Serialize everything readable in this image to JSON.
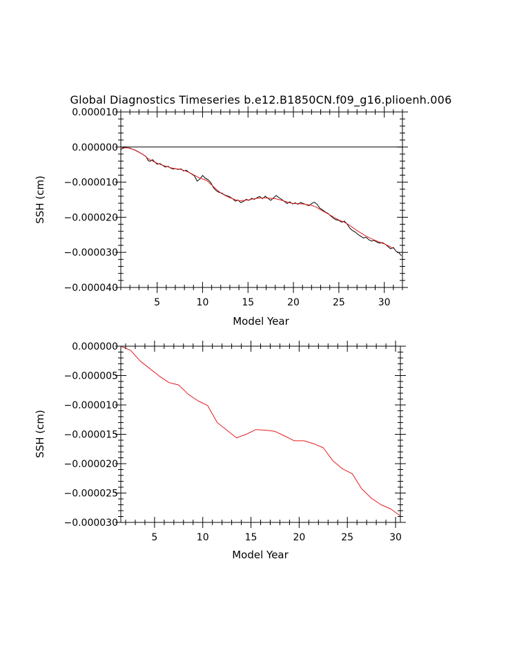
{
  "chart_data": [
    {
      "type": "line",
      "title": "Global Diagnostics Timeseries b.e12.B1850CN.f09_g16.plioenh.006",
      "xlabel": "Model Year",
      "ylabel": "SSH (cm)",
      "xlim": [
        1,
        32
      ],
      "ylim": [
        -4e-05,
        1e-05
      ],
      "x_ticks": [
        5,
        10,
        15,
        20,
        25,
        30
      ],
      "x_tick_labels": [
        "5",
        "10",
        "15",
        "20",
        "25",
        "30"
      ],
      "y_ticks": [
        1e-05,
        0,
        -1e-05,
        -2e-05,
        -3e-05,
        -4e-05
      ],
      "y_tick_labels": [
        "0.000010",
        "0.000000",
        "-0.000010",
        "-0.000020",
        "-0.000030",
        "-0.000040"
      ],
      "reference_line": 0,
      "series": [
        {
          "color": "#000000",
          "x": [
            1.0,
            1.2,
            1.5,
            1.8,
            2.0,
            2.3,
            2.6,
            2.9,
            3.2,
            3.5,
            3.8,
            4.0,
            4.2,
            4.5,
            4.8,
            5.0,
            5.3,
            5.6,
            5.9,
            6.2,
            6.5,
            6.8,
            7.0,
            7.3,
            7.6,
            7.9,
            8.2,
            8.5,
            8.8,
            9.1,
            9.4,
            9.7,
            10.0,
            10.3,
            10.6,
            10.9,
            11.2,
            11.5,
            11.8,
            12.1,
            12.4,
            12.7,
            13.0,
            13.3,
            13.6,
            13.9,
            14.2,
            14.5,
            14.8,
            15.1,
            15.4,
            15.7,
            16.0,
            16.3,
            16.6,
            16.9,
            17.2,
            17.5,
            17.8,
            18.1,
            18.4,
            18.7,
            19.0,
            19.3,
            19.6,
            19.9,
            20.2,
            20.5,
            20.8,
            21.1,
            21.4,
            21.7,
            22.0,
            22.3,
            22.6,
            22.9,
            23.2,
            23.5,
            23.8,
            24.1,
            24.4,
            24.7,
            25.0,
            25.3,
            25.6,
            25.9,
            26.2,
            26.5,
            26.8,
            27.1,
            27.4,
            27.7,
            28.0,
            28.3,
            28.6,
            28.9,
            29.2,
            29.5,
            29.8,
            30.1,
            30.4,
            30.7,
            31.0,
            31.3,
            31.6,
            31.9
          ],
          "y": [
            -8e-07,
            -3e-07,
            1e-07,
            -2e-07,
            -4e-07,
            -6e-07,
            -9e-07,
            -1.3e-06,
            -1.8e-06,
            -2.2e-06,
            -2.8e-06,
            -3.8e-06,
            -4.1e-06,
            -3.6e-06,
            -4.4e-06,
            -4.9e-06,
            -4.7e-06,
            -5.2e-06,
            -5.7e-06,
            -5.5e-06,
            -6e-06,
            -6.3e-06,
            -6.1e-06,
            -6.4e-06,
            -6.2e-06,
            -6.8e-06,
            -6.6e-06,
            -7.2e-06,
            -7.7e-06,
            -8.2e-06,
            -9.7e-06,
            -9.1e-06,
            -8.1e-06,
            -8.9e-06,
            -9.3e-06,
            -1.01e-05,
            -1.16e-05,
            -1.24e-05,
            -1.29e-05,
            -1.31e-05,
            -1.36e-05,
            -1.39e-05,
            -1.42e-05,
            -1.47e-05,
            -1.54e-05,
            -1.51e-05,
            -1.58e-05,
            -1.55e-05,
            -1.49e-05,
            -1.52e-05,
            -1.46e-05,
            -1.49e-05,
            -1.44e-05,
            -1.41e-05,
            -1.47e-05,
            -1.4e-05,
            -1.46e-05,
            -1.52e-05,
            -1.45e-05,
            -1.38e-05,
            -1.44e-05,
            -1.49e-05,
            -1.55e-05,
            -1.61e-05,
            -1.56e-05,
            -1.62e-05,
            -1.59e-05,
            -1.63e-05,
            -1.58e-05,
            -1.61e-05,
            -1.64e-05,
            -1.67e-05,
            -1.61e-05,
            -1.57e-05,
            -1.63e-05,
            -1.74e-05,
            -1.79e-05,
            -1.85e-05,
            -1.89e-05,
            -1.96e-05,
            -2.03e-05,
            -2.07e-05,
            -2.09e-05,
            -2.14e-05,
            -2.11e-05,
            -2.19e-05,
            -2.31e-05,
            -2.38e-05,
            -2.42e-05,
            -2.49e-05,
            -2.54e-05,
            -2.59e-05,
            -2.57e-05,
            -2.64e-05,
            -2.68e-05,
            -2.66e-05,
            -2.71e-05,
            -2.74e-05,
            -2.72e-05,
            -2.77e-05,
            -2.83e-05,
            -2.9e-05,
            -2.86e-05,
            -2.97e-05,
            -3.01e-05,
            -3.1e-05
          ]
        },
        {
          "color": "#e31a1c",
          "x": [
            1.0,
            1.5,
            2.0,
            2.5,
            3.0,
            3.5,
            4.0,
            4.5,
            5.0,
            5.5,
            6.0,
            6.5,
            7.0,
            7.5,
            8.0,
            8.5,
            9.0,
            9.5,
            10.0,
            10.5,
            11.0,
            11.5,
            12.0,
            12.5,
            13.0,
            13.5,
            14.0,
            14.5,
            15.0,
            15.5,
            16.0,
            16.5,
            17.0,
            17.5,
            18.0,
            18.5,
            19.0,
            19.5,
            20.0,
            20.5,
            21.0,
            21.5,
            22.0,
            22.5,
            23.0,
            23.5,
            24.0,
            24.5,
            25.0,
            25.5,
            26.0,
            26.5,
            27.0,
            27.5,
            28.0,
            28.5,
            29.0,
            29.5,
            30.0,
            30.5,
            31.0
          ],
          "y": [
            -6e-07,
            -2e-07,
            -3e-07,
            -8e-07,
            -1.5e-06,
            -2.2e-06,
            -3.3e-06,
            -4e-06,
            -4.6e-06,
            -5.1e-06,
            -5.5e-06,
            -5.9e-06,
            -6.2e-06,
            -6.3e-06,
            -6.7e-06,
            -7.2e-06,
            -7.9e-06,
            -8.6e-06,
            -9.1e-06,
            -9.6e-06,
            -1.08e-05,
            -1.2e-05,
            -1.31e-05,
            -1.38e-05,
            -1.44e-05,
            -1.49e-05,
            -1.53e-05,
            -1.52e-05,
            -1.51e-05,
            -1.48e-05,
            -1.46e-05,
            -1.45e-05,
            -1.45e-05,
            -1.46e-05,
            -1.47e-05,
            -1.5e-05,
            -1.54e-05,
            -1.58e-05,
            -1.61e-05,
            -1.61e-05,
            -1.62e-05,
            -1.64e-05,
            -1.66e-05,
            -1.71e-05,
            -1.79e-05,
            -1.86e-05,
            -1.93e-05,
            -2.01e-05,
            -2.08e-05,
            -2.13e-05,
            -2.2e-05,
            -2.29e-05,
            -2.38e-05,
            -2.46e-05,
            -2.54e-05,
            -2.6e-05,
            -2.66e-05,
            -2.71e-05,
            -2.76e-05,
            -2.82e-05,
            -2.89e-05
          ]
        }
      ]
    },
    {
      "type": "line",
      "title": "",
      "xlabel": "Model Year",
      "ylabel": "SSH (cm)",
      "xlim": [
        1.5,
        30.5
      ],
      "ylim": [
        -3e-05,
        0
      ],
      "x_ticks": [
        5,
        10,
        15,
        20,
        25,
        30
      ],
      "x_tick_labels": [
        "5",
        "10",
        "15",
        "20",
        "25",
        "30"
      ],
      "y_ticks": [
        0,
        -5e-06,
        -1e-05,
        -1.5e-05,
        -2e-05,
        -2.5e-05,
        -3e-05
      ],
      "y_tick_labels": [
        "0.000000",
        "-0.000005",
        "-0.000010",
        "-0.000015",
        "-0.000020",
        "-0.000025",
        "-0.000030"
      ],
      "series": [
        {
          "color": "#e31a1c",
          "x": [
            1.5,
            2.5,
            3.5,
            4.5,
            5.5,
            6.5,
            7.5,
            8.5,
            9.5,
            10.5,
            11.5,
            12.5,
            13.5,
            14.5,
            15.5,
            16.5,
            17.5,
            18.5,
            19.5,
            20.5,
            21.5,
            22.5,
            23.5,
            24.5,
            25.5,
            26.5,
            27.5,
            28.5,
            29.5,
            30.5
          ],
          "y": [
            0,
            -7e-07,
            -2.5e-06,
            -3.8e-06,
            -5.1e-06,
            -6.2e-06,
            -6.6e-06,
            -8.2e-06,
            -9.3e-06,
            -1.01e-05,
            -1.3e-05,
            -1.43e-05,
            -1.56e-05,
            -1.5e-05,
            -1.42e-05,
            -1.43e-05,
            -1.45e-05,
            -1.53e-05,
            -1.61e-05,
            -1.61e-05,
            -1.66e-05,
            -1.73e-05,
            -1.95e-05,
            -2.09e-05,
            -2.17e-05,
            -2.43e-05,
            -2.59e-05,
            -2.7e-05,
            -2.77e-05,
            -2.89e-05
          ]
        }
      ]
    }
  ]
}
